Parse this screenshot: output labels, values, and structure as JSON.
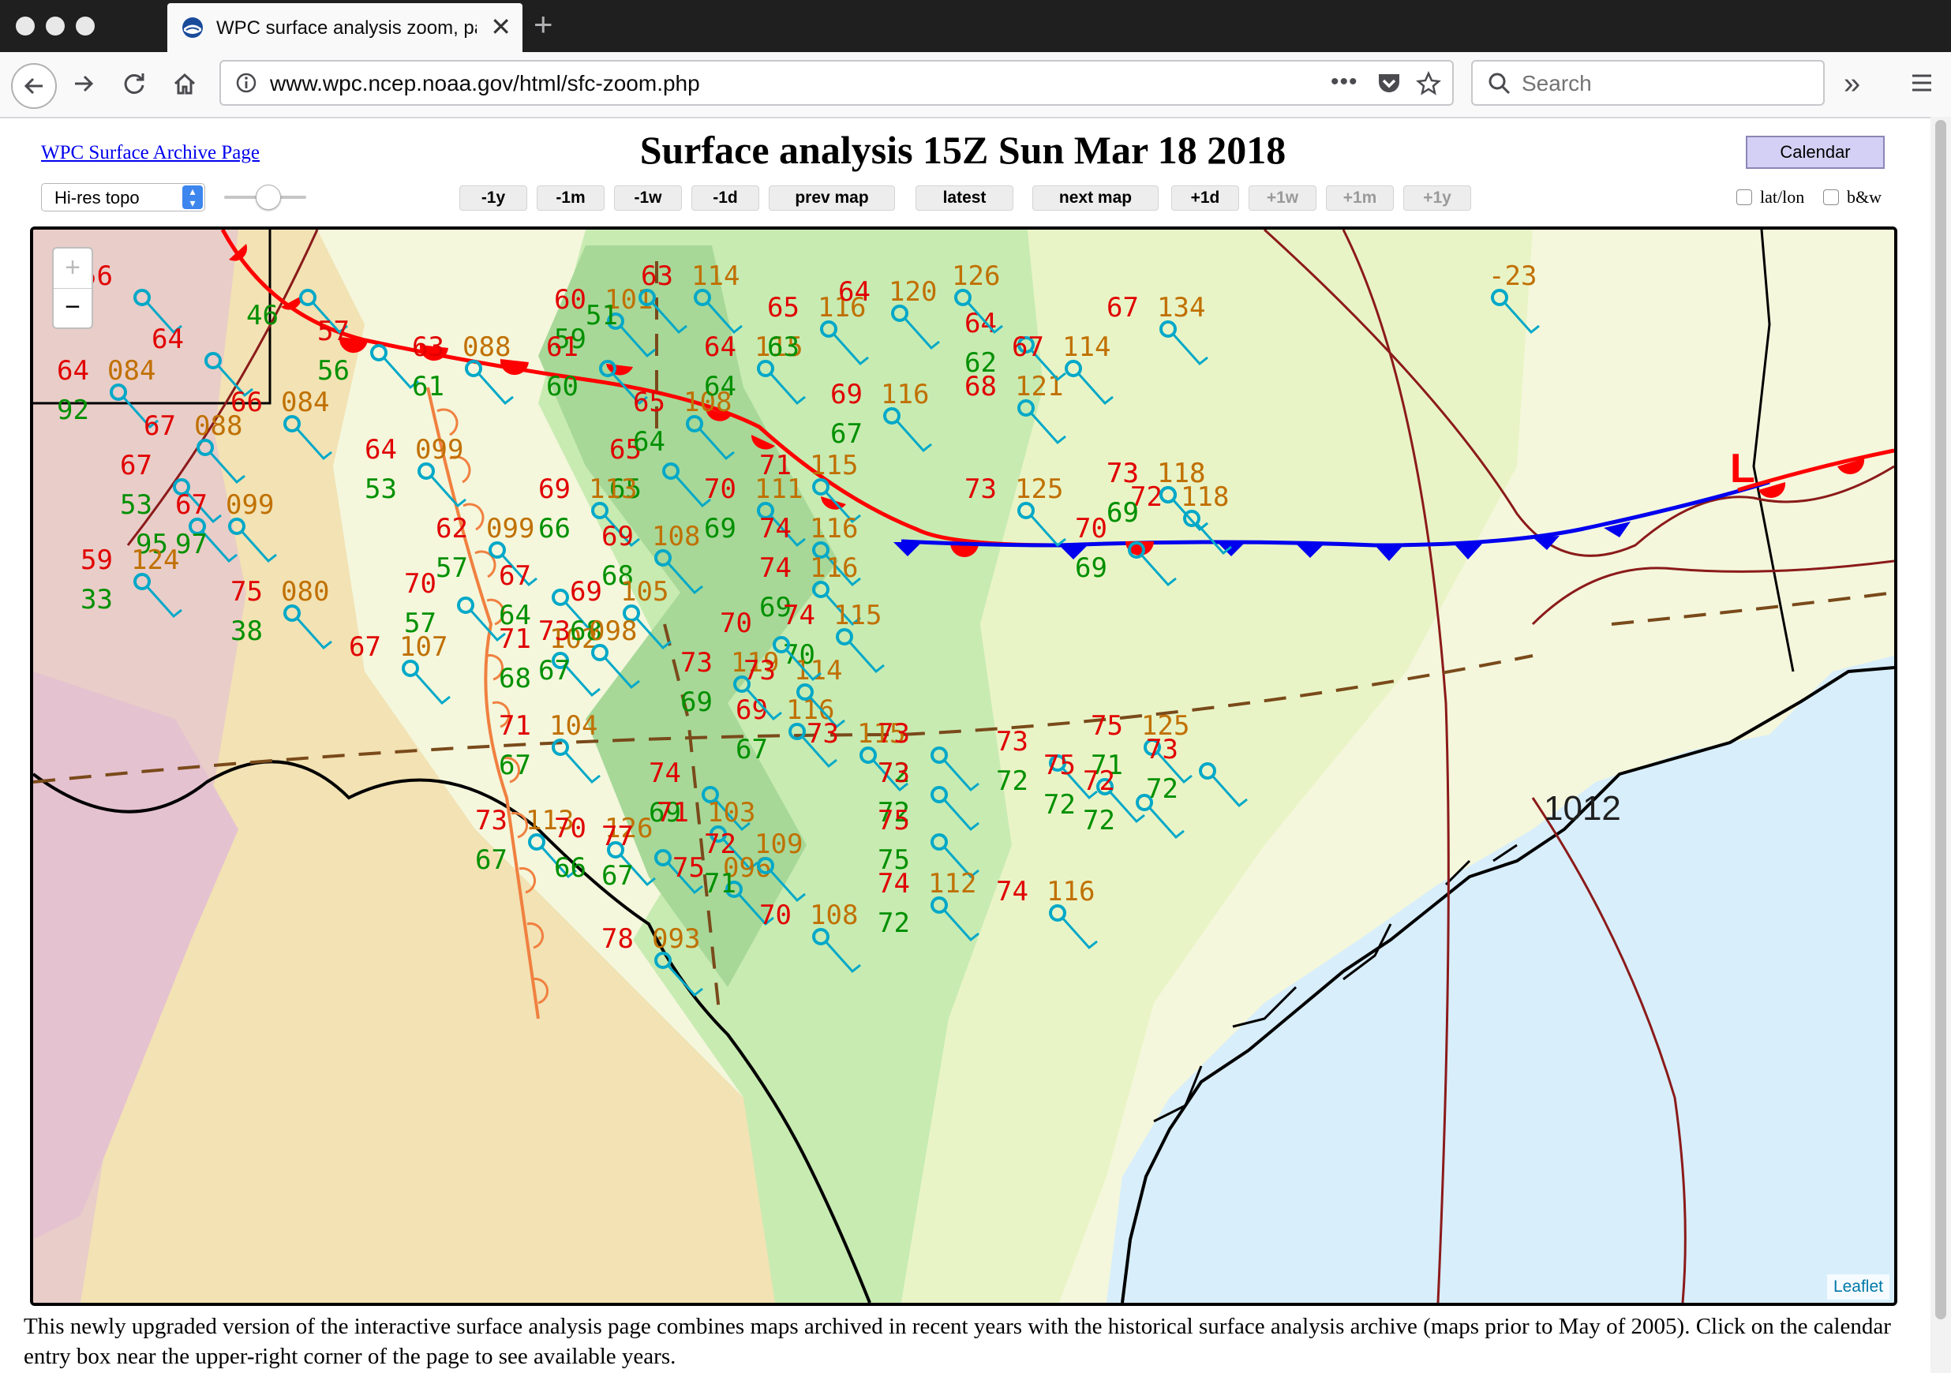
{
  "browser": {
    "tab": {
      "title": "WPC surface analysis zoom, pa"
    },
    "url": "www.wpc.ncep.noaa.gov/html/sfc-zoom.php",
    "search_placeholder": "Search"
  },
  "header": {
    "archive_link": "WPC Surface Archive Page",
    "title": "Surface analysis 15Z Sun Mar 18 2018",
    "calendar_label": "Calendar"
  },
  "controls": {
    "map_type": "Hi-res topo",
    "nav_buttons": [
      {
        "label": "-1y",
        "enabled": true
      },
      {
        "label": "-1m",
        "enabled": true
      },
      {
        "label": "-1w",
        "enabled": true
      },
      {
        "label": "-1d",
        "enabled": true
      },
      {
        "label": "prev map",
        "enabled": true
      },
      {
        "label": "latest",
        "enabled": true
      },
      {
        "label": "next map",
        "enabled": true
      },
      {
        "label": "+1d",
        "enabled": true
      },
      {
        "label": "+1w",
        "enabled": false
      },
      {
        "label": "+1m",
        "enabled": false
      },
      {
        "label": "+1y",
        "enabled": false
      }
    ],
    "latlon_label": "lat/lon",
    "bw_label": "b&w"
  },
  "map": {
    "zoom_in": "+",
    "zoom_out": "−",
    "attribution": "Leaflet",
    "pressure_label": "1012",
    "low_label": "L",
    "colors": {
      "warm_front": "#ff0000",
      "cold_front": "#0000ee",
      "dryline": "#f08040",
      "temperature": "#e00000",
      "dewpoint": "#009000",
      "pressure": "#c07000",
      "station": "#00a8c8",
      "isobar": "#8b1a1a",
      "water": "#d8eefb"
    },
    "stations": [
      {
        "temp": "56",
        "dew": "",
        "pres": ""
      },
      {
        "temp": "",
        "dew": "46",
        "pres": ""
      },
      {
        "temp": "57",
        "dew": "56",
        "pres": ""
      },
      {
        "temp": "64",
        "dew": "",
        "pres": ""
      },
      {
        "temp": "64",
        "dew": "92",
        "pres": "084"
      },
      {
        "temp": "66",
        "dew": "",
        "pres": "084"
      },
      {
        "temp": "67",
        "dew": "",
        "pres": "088"
      },
      {
        "temp": "67",
        "dew": "53",
        "pres": ""
      },
      {
        "temp": "",
        "dew": "95",
        "pres": ""
      },
      {
        "temp": "67",
        "dew": "97",
        "pres": "099"
      },
      {
        "temp": "59",
        "dew": "33",
        "pres": "124"
      },
      {
        "temp": "75",
        "dew": "38",
        "pres": "080"
      },
      {
        "temp": "64",
        "dew": "53",
        "pres": "099"
      },
      {
        "temp": "63",
        "dew": "61",
        "pres": "088"
      },
      {
        "temp": "60",
        "dew": "59",
        "pres": "101"
      },
      {
        "temp": "",
        "dew": "51",
        "pres": ""
      },
      {
        "temp": "61",
        "dew": "60",
        "pres": ""
      },
      {
        "temp": "62",
        "dew": "57",
        "pres": "099"
      },
      {
        "temp": "70",
        "dew": "57",
        "pres": ""
      },
      {
        "temp": "67",
        "dew": "64",
        "pres": ""
      },
      {
        "temp": "71",
        "dew": "68",
        "pres": "102"
      },
      {
        "temp": "67",
        "dew": "",
        "pres": "107"
      },
      {
        "temp": "71",
        "dew": "67",
        "pres": "104"
      },
      {
        "temp": "73",
        "dew": "67",
        "pres": "113"
      },
      {
        "temp": "70",
        "dew": "66",
        "pres": "126"
      },
      {
        "temp": "77",
        "dew": "67",
        "pres": ""
      },
      {
        "temp": "63",
        "dew": "",
        "pres": "114"
      },
      {
        "temp": "65",
        "dew": "65",
        "pres": ""
      },
      {
        "temp": "65",
        "dew": "64",
        "pres": "108"
      },
      {
        "temp": "64",
        "dew": "64",
        "pres": "115"
      },
      {
        "temp": "65",
        "dew": "63",
        "pres": "116"
      },
      {
        "temp": "64",
        "dew": "",
        "pres": "120"
      },
      {
        "temp": "69",
        "dew": "66",
        "pres": "113"
      },
      {
        "temp": "69",
        "dew": "68",
        "pres": "108"
      },
      {
        "temp": "69",
        "dew": "68",
        "pres": "105"
      },
      {
        "temp": "73",
        "dew": "67",
        "pres": "098"
      },
      {
        "temp": "70",
        "dew": "69",
        "pres": "111"
      },
      {
        "temp": "71",
        "dew": "",
        "pres": "115"
      },
      {
        "temp": "74",
        "dew": "",
        "pres": "116"
      },
      {
        "temp": "74",
        "dew": "69",
        "pres": "116"
      },
      {
        "temp": "74",
        "dew": "70",
        "pres": "115"
      },
      {
        "temp": "69",
        "dew": "67",
        "pres": "116"
      },
      {
        "temp": "73",
        "dew": "69",
        "pres": "119"
      },
      {
        "temp": "73",
        "dew": "",
        "pres": "114"
      },
      {
        "temp": "70",
        "dew": "",
        "pres": ""
      },
      {
        "temp": "73",
        "dew": "",
        "pres": "115"
      },
      {
        "temp": "74",
        "dew": "69",
        "pres": ""
      },
      {
        "temp": "71",
        "dew": "",
        "pres": "103"
      },
      {
        "temp": "75",
        "dew": "",
        "pres": "096"
      },
      {
        "temp": "72",
        "dew": "71",
        "pres": "109"
      },
      {
        "temp": "70",
        "dew": "",
        "pres": "108"
      },
      {
        "temp": "73",
        "dew": "72",
        "pres": ""
      },
      {
        "temp": "73",
        "dew": "72",
        "pres": ""
      },
      {
        "temp": "75",
        "dew": "75",
        "pres": ""
      },
      {
        "temp": "74",
        "dew": "72",
        "pres": "112"
      },
      {
        "temp": "74",
        "dew": "",
        "pres": "116"
      },
      {
        "temp": "75",
        "dew": "71",
        "pres": "125"
      },
      {
        "temp": "73",
        "dew": "72",
        "pres": ""
      },
      {
        "temp": "75",
        "dew": "72",
        "pres": ""
      },
      {
        "temp": "72",
        "dew": "72",
        "pres": ""
      },
      {
        "temp": "73",
        "dew": "72",
        "pres": ""
      },
      {
        "temp": "73",
        "dew": "",
        "pres": "125"
      },
      {
        "temp": "72",
        "dew": "",
        "pres": "118"
      },
      {
        "temp": "70",
        "dew": "69",
        "pres": ""
      },
      {
        "temp": "68",
        "dew": "",
        "pres": "121"
      },
      {
        "temp": "69",
        "dew": "67",
        "pres": "116"
      },
      {
        "temp": "73",
        "dew": "69",
        "pres": "118"
      },
      {
        "temp": "73",
        "dew": "69",
        "pres": "118"
      },
      {
        "temp": "64",
        "dew": "62",
        "pres": ""
      },
      {
        "temp": "67",
        "dew": "",
        "pres": "114"
      },
      {
        "temp": "67",
        "dew": "",
        "pres": "134"
      },
      {
        "temp": "",
        "dew": "",
        "pres": "126"
      },
      {
        "temp": "78",
        "dew": "",
        "pres": "093"
      },
      {
        "temp": "",
        "dew": "",
        "pres": "-23"
      }
    ]
  },
  "description": "This newly upgraded version of the interactive surface analysis page combines maps archived in recent years with the historical surface analysis archive (maps prior to May of 2005). Click on the calendar entry box near the upper-right corner of the page to see available years."
}
